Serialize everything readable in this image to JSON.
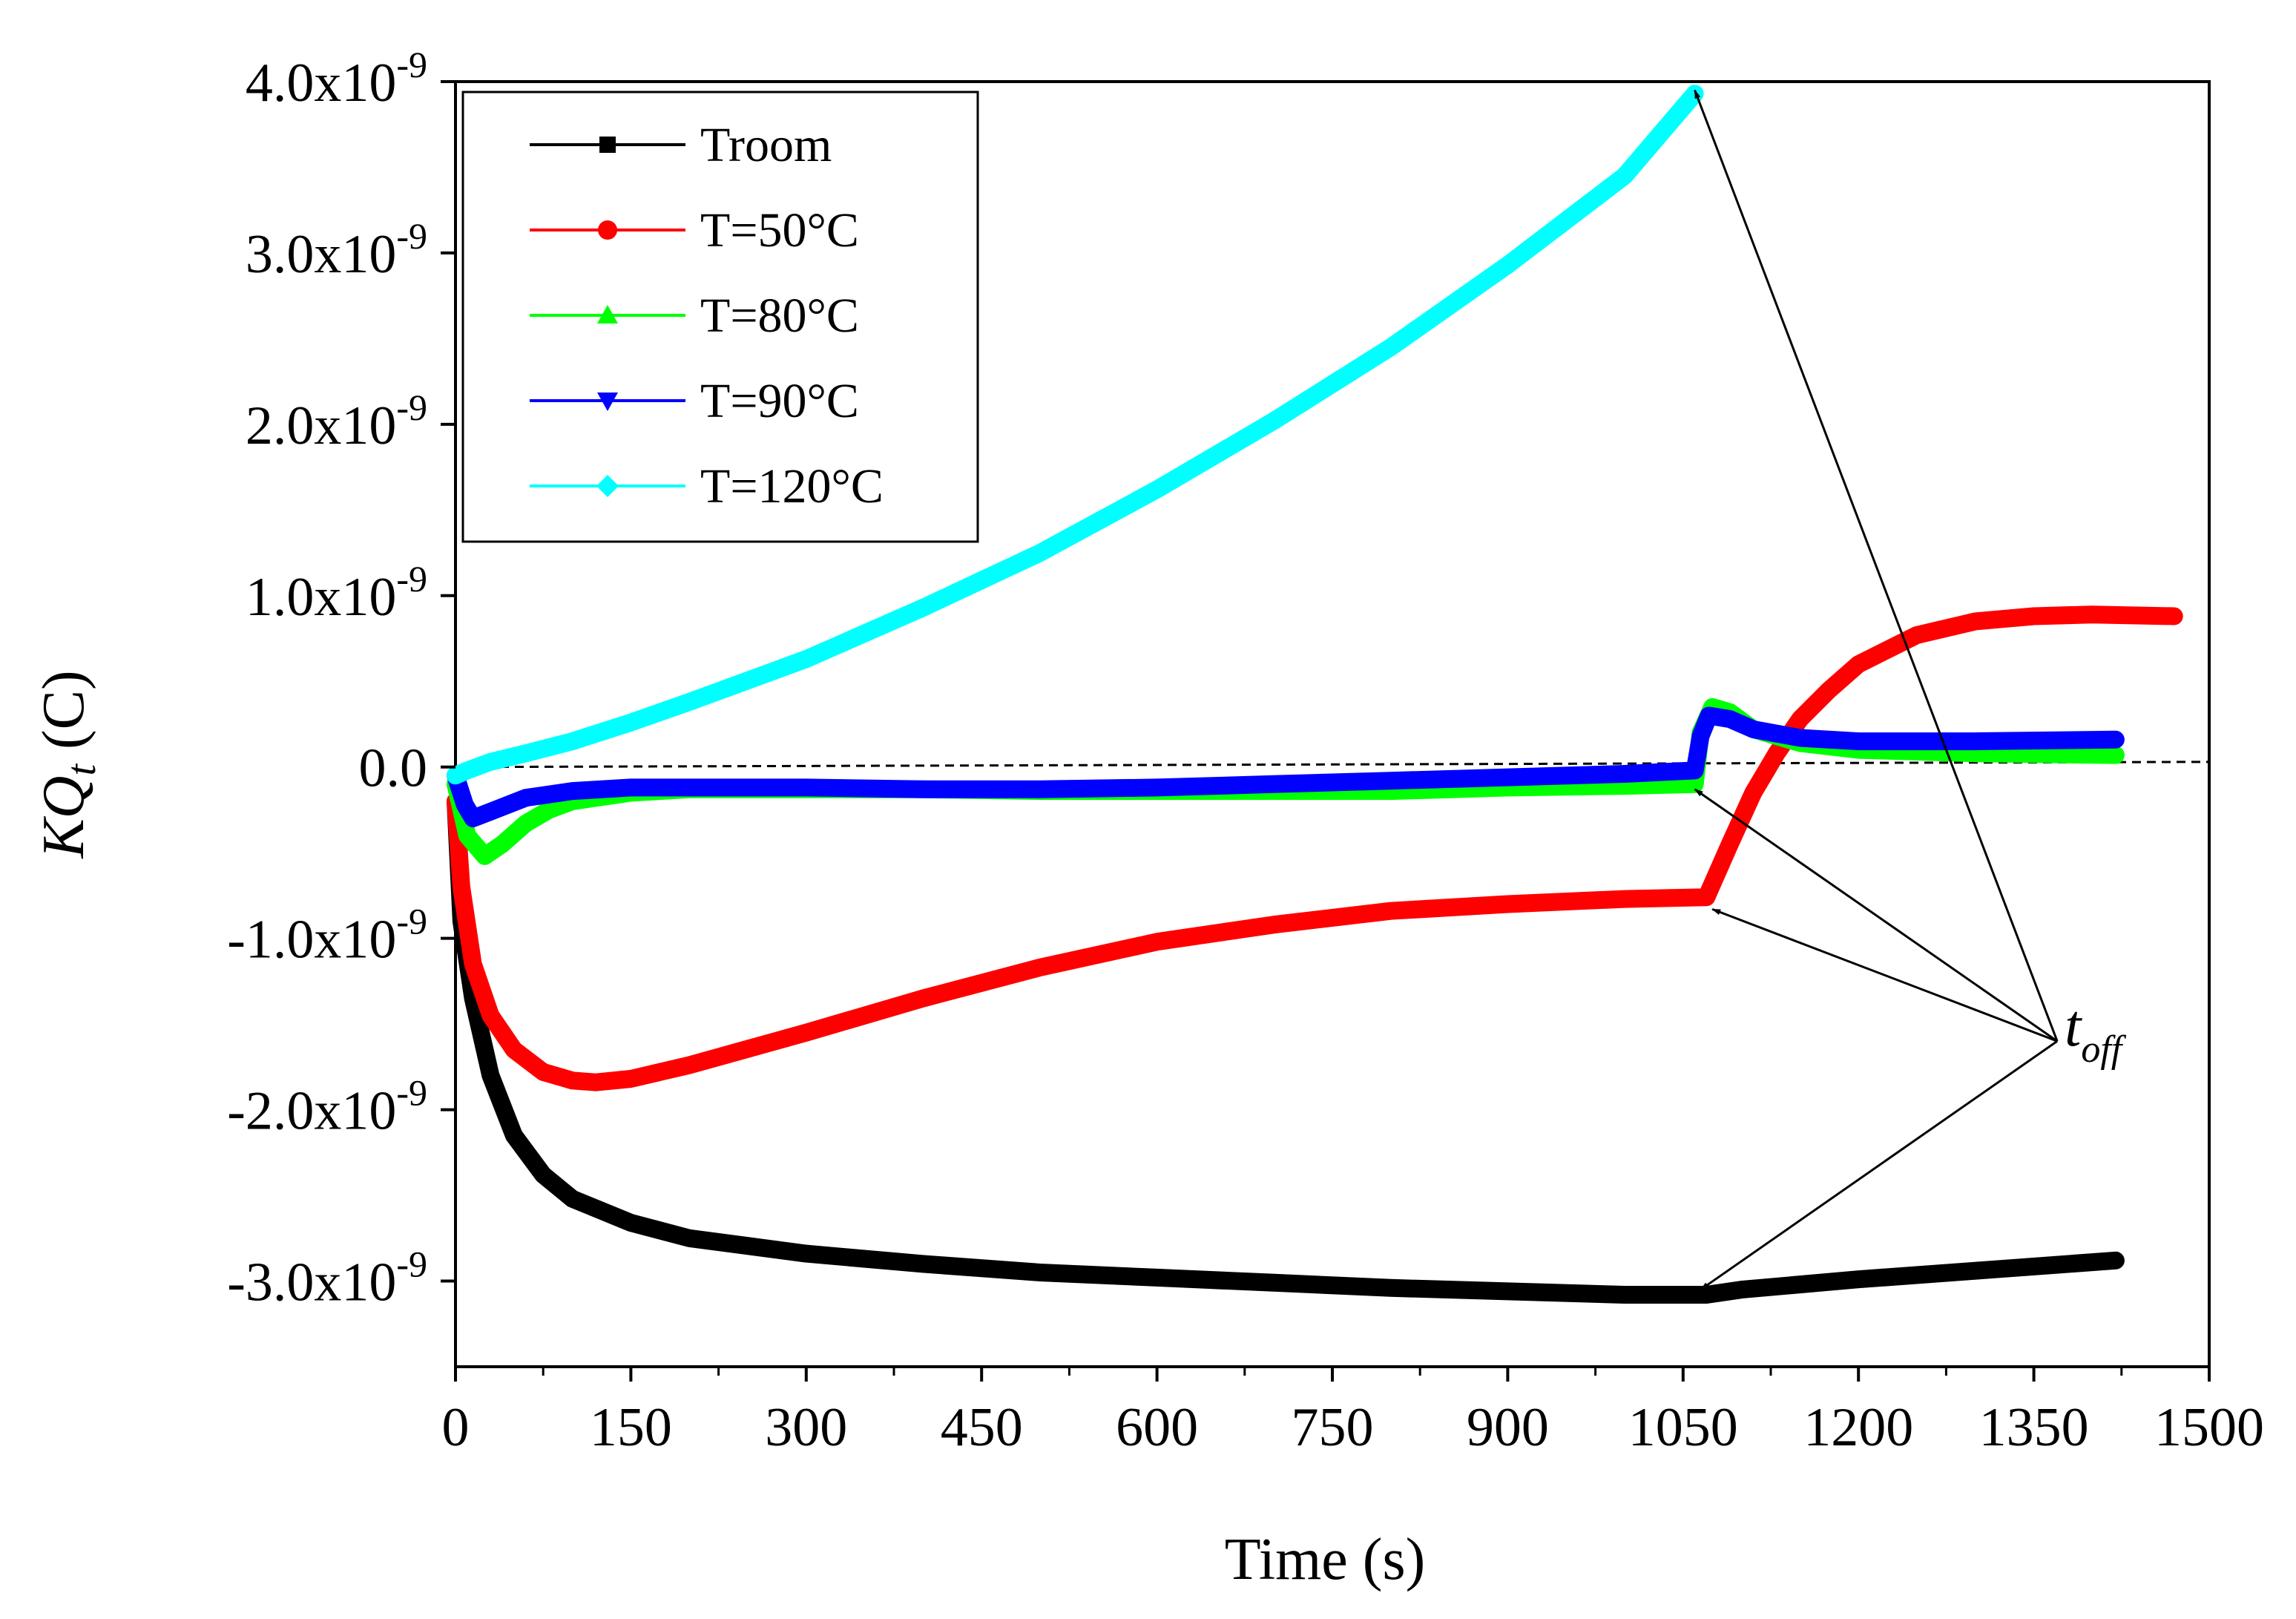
{
  "chart_data": {
    "type": "line",
    "xlabel": "Time (s)",
    "ylabel_main": "KQ",
    "ylabel_sub": "t",
    "ylabel_unit": " (C)",
    "xlim": [
      0,
      1500
    ],
    "ylim": [
      -3.5e-09,
      4e-09
    ],
    "x_ticks": [
      {
        "value": 0,
        "label": "0"
      },
      {
        "value": 150,
        "label": "150"
      },
      {
        "value": 300,
        "label": "300"
      },
      {
        "value": 450,
        "label": "450"
      },
      {
        "value": 600,
        "label": "600"
      },
      {
        "value": 750,
        "label": "750"
      },
      {
        "value": 900,
        "label": "900"
      },
      {
        "value": 1050,
        "label": "1050"
      },
      {
        "value": 1200,
        "label": "1200"
      },
      {
        "value": 1350,
        "label": "1350"
      },
      {
        "value": 1500,
        "label": "1500"
      }
    ],
    "y_ticks": [
      {
        "value": 4e-09,
        "mantissa": "4.0x10",
        "exponent": "-9"
      },
      {
        "value": 3e-09,
        "mantissa": "3.0x10",
        "exponent": "-9"
      },
      {
        "value": 2e-09,
        "mantissa": "2.0x10",
        "exponent": "-9"
      },
      {
        "value": 1e-09,
        "mantissa": "1.0x10",
        "exponent": "-9"
      },
      {
        "value": 0.0,
        "mantissa": "0.0",
        "exponent": ""
      },
      {
        "value": -1e-09,
        "mantissa": "-1.0x10",
        "exponent": "-9"
      },
      {
        "value": -2e-09,
        "mantissa": "-2.0x10",
        "exponent": "-9"
      },
      {
        "value": -3e-09,
        "mantissa": "-3.0x10",
        "exponent": "-9"
      }
    ],
    "legend_position": "top-left",
    "series": [
      {
        "name": "Troom",
        "color": "#000000",
        "marker": "square",
        "points": [
          [
            0,
            -2e-10
          ],
          [
            5,
            -9e-10
          ],
          [
            15,
            -1.35e-09
          ],
          [
            30,
            -1.8e-09
          ],
          [
            50,
            -2.15e-09
          ],
          [
            75,
            -2.38e-09
          ],
          [
            100,
            -2.52e-09
          ],
          [
            150,
            -2.66e-09
          ],
          [
            200,
            -2.75e-09
          ],
          [
            300,
            -2.84e-09
          ],
          [
            400,
            -2.9e-09
          ],
          [
            500,
            -2.95e-09
          ],
          [
            600,
            -2.98e-09
          ],
          [
            700,
            -3.01e-09
          ],
          [
            800,
            -3.04e-09
          ],
          [
            900,
            -3.06e-09
          ],
          [
            1000,
            -3.08e-09
          ],
          [
            1070,
            -3.08e-09
          ],
          [
            1100,
            -3.05e-09
          ],
          [
            1200,
            -2.99e-09
          ],
          [
            1300,
            -2.94e-09
          ],
          [
            1420,
            -2.88e-09
          ]
        ]
      },
      {
        "name": "T=50°C",
        "color": "#ff0000",
        "marker": "circle",
        "points": [
          [
            0,
            -2e-10
          ],
          [
            5,
            -7e-10
          ],
          [
            15,
            -1.15e-09
          ],
          [
            30,
            -1.45e-09
          ],
          [
            50,
            -1.65e-09
          ],
          [
            75,
            -1.78e-09
          ],
          [
            100,
            -1.83e-09
          ],
          [
            120,
            -1.84e-09
          ],
          [
            150,
            -1.82e-09
          ],
          [
            200,
            -1.74e-09
          ],
          [
            300,
            -1.55e-09
          ],
          [
            400,
            -1.35e-09
          ],
          [
            500,
            -1.17e-09
          ],
          [
            600,
            -1.02e-09
          ],
          [
            700,
            -9.2e-10
          ],
          [
            800,
            -8.4e-10
          ],
          [
            900,
            -8e-10
          ],
          [
            1000,
            -7.7e-10
          ],
          [
            1070,
            -7.6e-10
          ],
          [
            1090,
            -4.5e-10
          ],
          [
            1110,
            -1.5e-10
          ],
          [
            1130,
            8e-11
          ],
          [
            1150,
            2.8e-10
          ],
          [
            1175,
            4.5e-10
          ],
          [
            1200,
            6e-10
          ],
          [
            1250,
            7.7e-10
          ],
          [
            1300,
            8.5e-10
          ],
          [
            1350,
            8.8e-10
          ],
          [
            1400,
            8.9e-10
          ],
          [
            1470,
            8.8e-10
          ]
        ]
      },
      {
        "name": "T=80°C",
        "color": "#00ff00",
        "marker": "triangle-up",
        "points": [
          [
            0,
            -1e-10
          ],
          [
            10,
            -4e-10
          ],
          [
            25,
            -5.2e-10
          ],
          [
            40,
            -4.5e-10
          ],
          [
            60,
            -3.3e-10
          ],
          [
            80,
            -2.5e-10
          ],
          [
            100,
            -2e-10
          ],
          [
            150,
            -1.5e-10
          ],
          [
            200,
            -1.3e-10
          ],
          [
            300,
            -1.3e-10
          ],
          [
            400,
            -1.3e-10
          ],
          [
            500,
            -1.4e-10
          ],
          [
            600,
            -1.4e-10
          ],
          [
            700,
            -1.4e-10
          ],
          [
            800,
            -1.4e-10
          ],
          [
            900,
            -1.2e-10
          ],
          [
            1000,
            -1.1e-10
          ],
          [
            1060,
            -1e-10
          ],
          [
            1065,
            2e-10
          ],
          [
            1075,
            3.5e-10
          ],
          [
            1090,
            3.2e-10
          ],
          [
            1110,
            2.2e-10
          ],
          [
            1150,
            1.4e-10
          ],
          [
            1200,
            1e-10
          ],
          [
            1300,
            8e-11
          ],
          [
            1420,
            7e-11
          ]
        ]
      },
      {
        "name": "T=90°C",
        "color": "#0000ff",
        "marker": "triangle-down",
        "points": [
          [
            0,
            -5e-11
          ],
          [
            8,
            -2.2e-10
          ],
          [
            15,
            -3e-10
          ],
          [
            30,
            -2.6e-10
          ],
          [
            60,
            -1.8e-10
          ],
          [
            100,
            -1.4e-10
          ],
          [
            150,
            -1.2e-10
          ],
          [
            200,
            -1.2e-10
          ],
          [
            300,
            -1.2e-10
          ],
          [
            400,
            -1.3e-10
          ],
          [
            500,
            -1.3e-10
          ],
          [
            600,
            -1.2e-10
          ],
          [
            700,
            -1e-10
          ],
          [
            800,
            -8e-11
          ],
          [
            900,
            -6e-11
          ],
          [
            1000,
            -4e-11
          ],
          [
            1060,
            -2e-11
          ],
          [
            1065,
            1.8e-10
          ],
          [
            1072,
            3e-10
          ],
          [
            1090,
            2.8e-10
          ],
          [
            1110,
            2.2e-10
          ],
          [
            1150,
            1.7e-10
          ],
          [
            1200,
            1.5e-10
          ],
          [
            1300,
            1.5e-10
          ],
          [
            1420,
            1.6e-10
          ]
        ]
      },
      {
        "name": "T=120°C",
        "color": "#00ffff",
        "marker": "diamond",
        "points": [
          [
            0,
            -5e-11
          ],
          [
            10,
            -2e-11
          ],
          [
            30,
            3e-11
          ],
          [
            60,
            8e-11
          ],
          [
            100,
            1.5e-10
          ],
          [
            150,
            2.6e-10
          ],
          [
            200,
            3.8e-10
          ],
          [
            300,
            6.3e-10
          ],
          [
            400,
            9.3e-10
          ],
          [
            500,
            1.25e-09
          ],
          [
            600,
            1.62e-09
          ],
          [
            700,
            2.02e-09
          ],
          [
            800,
            2.45e-09
          ],
          [
            900,
            2.93e-09
          ],
          [
            1000,
            3.45e-09
          ],
          [
            1060,
            3.93e-09
          ]
        ]
      }
    ],
    "reference_line": {
      "style": "dashed",
      "points": [
        [
          0,
          0.0
        ],
        [
          1500,
          3e-11
        ]
      ]
    },
    "annotation": {
      "text_main": "t",
      "text_sub": "off",
      "anchor": [
        1370,
        -1.6e-09
      ],
      "arrow_targets": [
        [
          1060,
          3.95e-09
        ],
        [
          1060,
          -1.3e-10
        ],
        [
          1075,
          -8.3e-10
        ],
        [
          1065,
          -3.05e-09
        ]
      ]
    }
  }
}
